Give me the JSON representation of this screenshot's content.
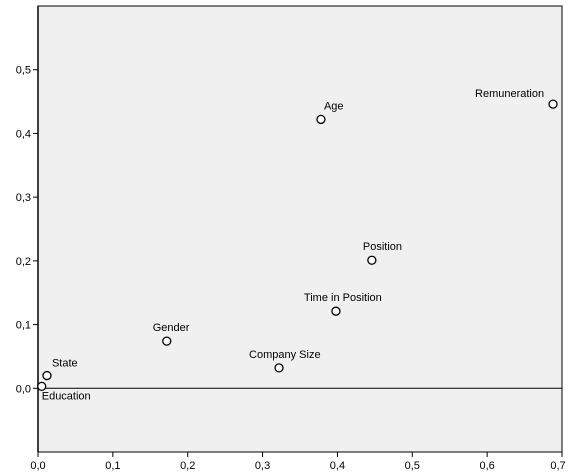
{
  "chart_data": {
    "type": "scatter",
    "title": "",
    "xlabel": "",
    "ylabel": "",
    "xlim": [
      0.0,
      0.7
    ],
    "ylim": [
      -0.1,
      0.6
    ],
    "x_ticks": [
      "0,0",
      "0,1",
      "0,2",
      "0,3",
      "0,4",
      "0,5",
      "0,6",
      "0,7"
    ],
    "y_ticks": [
      "0,0",
      "0,1",
      "0,2",
      "0,3",
      "0,4",
      "0,5"
    ],
    "grid": false,
    "reference_line_y": 0.0,
    "colors": {
      "plot_background": "#f0f0f0",
      "marker_fill": "#ffffff",
      "marker_stroke": "#000000"
    },
    "points": [
      {
        "label": "Education",
        "x": 0.005,
        "y": 0.003
      },
      {
        "label": "State",
        "x": 0.012,
        "y": 0.02
      },
      {
        "label": "Gender",
        "x": 0.172,
        "y": 0.074
      },
      {
        "label": "Company Size",
        "x": 0.322,
        "y": 0.032
      },
      {
        "label": "Time in Position",
        "x": 0.398,
        "y": 0.121
      },
      {
        "label": "Position",
        "x": 0.446,
        "y": 0.201
      },
      {
        "label": "Age",
        "x": 0.378,
        "y": 0.422
      },
      {
        "label": "Remuneration",
        "x": 0.688,
        "y": 0.446
      }
    ]
  }
}
